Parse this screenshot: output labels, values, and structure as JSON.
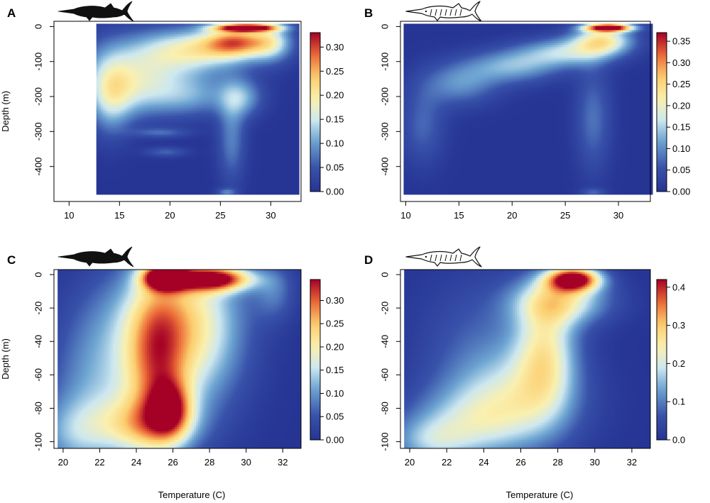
{
  "chart_data": [
    {
      "type": "heatmap",
      "panel_label": "A",
      "icon": "marlin-silhouette-black-icon",
      "xlabel": "",
      "ylabel": "Depth (m)",
      "xlim": [
        8.5,
        33
      ],
      "ylim": [
        -500,
        15
      ],
      "data_xlim": [
        12.7,
        32.8
      ],
      "data_ylim": [
        -480,
        8
      ],
      "xticks": [
        10,
        15,
        20,
        25,
        30
      ],
      "yticks": [
        0,
        -100,
        -200,
        -300,
        -400
      ],
      "colorbar": {
        "min": 0,
        "max": 0.33,
        "ticks": [
          "0.30",
          "0.25",
          "0.20",
          "0.15",
          "0.10",
          "0.05",
          "0.00"
        ],
        "tick_values": [
          0.3,
          0.25,
          0.2,
          0.15,
          0.1,
          0.05,
          0.0
        ]
      },
      "blobs": [
        {
          "x": 27.5,
          "y": 0,
          "sx": 2.2,
          "sy": 8,
          "v": 0.33
        },
        {
          "x": 26.5,
          "y": -40,
          "sx": 2.2,
          "sy": 30,
          "v": 0.2
        },
        {
          "x": 23,
          "y": -60,
          "sx": 4,
          "sy": 40,
          "v": 0.13
        },
        {
          "x": 18,
          "y": -110,
          "sx": 5,
          "sy": 70,
          "v": 0.11
        },
        {
          "x": 14,
          "y": -200,
          "sx": 1.5,
          "sy": 80,
          "v": 0.1
        },
        {
          "x": 16,
          "y": -180,
          "sx": 3,
          "sy": 60,
          "v": 0.08
        },
        {
          "x": 22,
          "y": -200,
          "sx": 3,
          "sy": 40,
          "v": 0.07
        },
        {
          "x": 27,
          "y": -200,
          "sx": 1.5,
          "sy": 40,
          "v": 0.09
        },
        {
          "x": 26,
          "y": -320,
          "sx": 1,
          "sy": 90,
          "v": 0.08
        },
        {
          "x": 19,
          "y": -300,
          "sx": 2,
          "sy": 10,
          "v": 0.06
        },
        {
          "x": 19.5,
          "y": -355,
          "sx": 1.5,
          "sy": 10,
          "v": 0.06
        },
        {
          "x": 30,
          "y": -40,
          "sx": 1.5,
          "sy": 40,
          "v": 0.12
        },
        {
          "x": 25.5,
          "y": -470,
          "sx": 0.7,
          "sy": 8,
          "v": 0.07
        }
      ]
    },
    {
      "type": "heatmap",
      "panel_label": "B",
      "icon": "marlin-striped-outline-icon",
      "xlabel": "",
      "ylabel": "",
      "xlim": [
        9.5,
        33
      ],
      "ylim": [
        -500,
        15
      ],
      "data_xlim": [
        9.8,
        33.2
      ],
      "data_ylim": [
        -480,
        8
      ],
      "xticks": [
        10,
        15,
        20,
        25,
        30
      ],
      "yticks": [
        0,
        -100,
        -200,
        -300,
        -400
      ],
      "colorbar": {
        "min": 0,
        "max": 0.37,
        "ticks": [
          "0.35",
          "0.30",
          "0.25",
          "0.20",
          "0.15",
          "0.10",
          "0.05",
          "0.00"
        ],
        "tick_values": [
          0.35,
          0.3,
          0.25,
          0.2,
          0.15,
          0.1,
          0.05,
          0.0
        ]
      },
      "blobs": [
        {
          "x": 29,
          "y": 0,
          "sx": 1.6,
          "sy": 8,
          "v": 0.37
        },
        {
          "x": 28.5,
          "y": -35,
          "sx": 2,
          "sy": 30,
          "v": 0.2
        },
        {
          "x": 25,
          "y": -70,
          "sx": 3,
          "sy": 30,
          "v": 0.14
        },
        {
          "x": 20,
          "y": -110,
          "sx": 3,
          "sy": 35,
          "v": 0.12
        },
        {
          "x": 15,
          "y": -160,
          "sx": 2.5,
          "sy": 45,
          "v": 0.1
        },
        {
          "x": 11.5,
          "y": -280,
          "sx": 1.5,
          "sy": 80,
          "v": 0.07
        },
        {
          "x": 27.5,
          "y": -260,
          "sx": 1.2,
          "sy": 110,
          "v": 0.08
        },
        {
          "x": 27.5,
          "y": -470,
          "sx": 0.8,
          "sy": 8,
          "v": 0.06
        }
      ]
    },
    {
      "type": "heatmap",
      "panel_label": "C",
      "icon": "marlin-silhouette-black-icon",
      "xlabel": "Temperature (C)",
      "ylabel": "Depth (m)",
      "xlim": [
        19.5,
        33
      ],
      "ylim": [
        -104,
        3
      ],
      "data_xlim": [
        19.7,
        33
      ],
      "data_ylim": [
        -104,
        3
      ],
      "xticks": [
        20,
        22,
        24,
        26,
        28,
        30,
        32
      ],
      "yticks": [
        0,
        -20,
        -40,
        -60,
        -80,
        -100
      ],
      "colorbar": {
        "min": 0,
        "max": 0.345,
        "ticks": [
          "0.30",
          "0.25",
          "0.20",
          "0.15",
          "0.10",
          "0.05",
          "0.00"
        ],
        "tick_values": [
          0.3,
          0.25,
          0.2,
          0.15,
          0.1,
          0.05,
          0.0
        ]
      },
      "blobs": [
        {
          "x": 25.5,
          "y": -1,
          "sx": 0.8,
          "sy": 5,
          "v": 0.34
        },
        {
          "x": 28.2,
          "y": -2,
          "sx": 1.5,
          "sy": 5,
          "v": 0.3
        },
        {
          "x": 27,
          "y": -30,
          "sx": 2,
          "sy": 35,
          "v": 0.2
        },
        {
          "x": 25,
          "y": -50,
          "sx": 1.2,
          "sy": 35,
          "v": 0.18
        },
        {
          "x": 25.8,
          "y": -80,
          "sx": 0.8,
          "sy": 12,
          "v": 0.18
        },
        {
          "x": 24.5,
          "y": -90,
          "sx": 1.8,
          "sy": 12,
          "v": 0.15
        },
        {
          "x": 22,
          "y": -70,
          "sx": 2,
          "sy": 30,
          "v": 0.1
        },
        {
          "x": 20.5,
          "y": -95,
          "sx": 1.5,
          "sy": 15,
          "v": 0.08
        },
        {
          "x": 23,
          "y": -25,
          "sx": 2,
          "sy": 25,
          "v": 0.06
        },
        {
          "x": 31.5,
          "y": -10,
          "sx": 0.8,
          "sy": 12,
          "v": 0.07
        }
      ]
    },
    {
      "type": "heatmap",
      "panel_label": "D",
      "icon": "marlin-striped-outline-icon",
      "xlabel": "Temperature (C)",
      "ylabel": "",
      "xlim": [
        19.5,
        33
      ],
      "ylim": [
        -104,
        3
      ],
      "data_xlim": [
        19.7,
        33
      ],
      "data_ylim": [
        -104,
        3
      ],
      "xticks": [
        20,
        22,
        24,
        26,
        28,
        30,
        32
      ],
      "yticks": [
        0,
        -20,
        -40,
        -60,
        -80,
        -100
      ],
      "colorbar": {
        "min": 0,
        "max": 0.42,
        "ticks": [
          "0.4",
          "0.3",
          "0.2",
          "0.1",
          "0.0"
        ],
        "tick_values": [
          0.4,
          0.3,
          0.2,
          0.1,
          0.0
        ]
      },
      "blobs": [
        {
          "x": 28.8,
          "y": -2,
          "sx": 1.0,
          "sy": 5,
          "v": 0.42
        },
        {
          "x": 28.2,
          "y": -15,
          "sx": 1.8,
          "sy": 10,
          "v": 0.2
        },
        {
          "x": 27.3,
          "y": -45,
          "sx": 1.2,
          "sy": 25,
          "v": 0.2
        },
        {
          "x": 25.5,
          "y": -75,
          "sx": 2.5,
          "sy": 20,
          "v": 0.15
        },
        {
          "x": 23,
          "y": -90,
          "sx": 2.5,
          "sy": 15,
          "v": 0.12
        },
        {
          "x": 21,
          "y": -100,
          "sx": 1.5,
          "sy": 10,
          "v": 0.1
        },
        {
          "x": 24,
          "y": -40,
          "sx": 2.5,
          "sy": 30,
          "v": 0.07
        }
      ]
    }
  ]
}
